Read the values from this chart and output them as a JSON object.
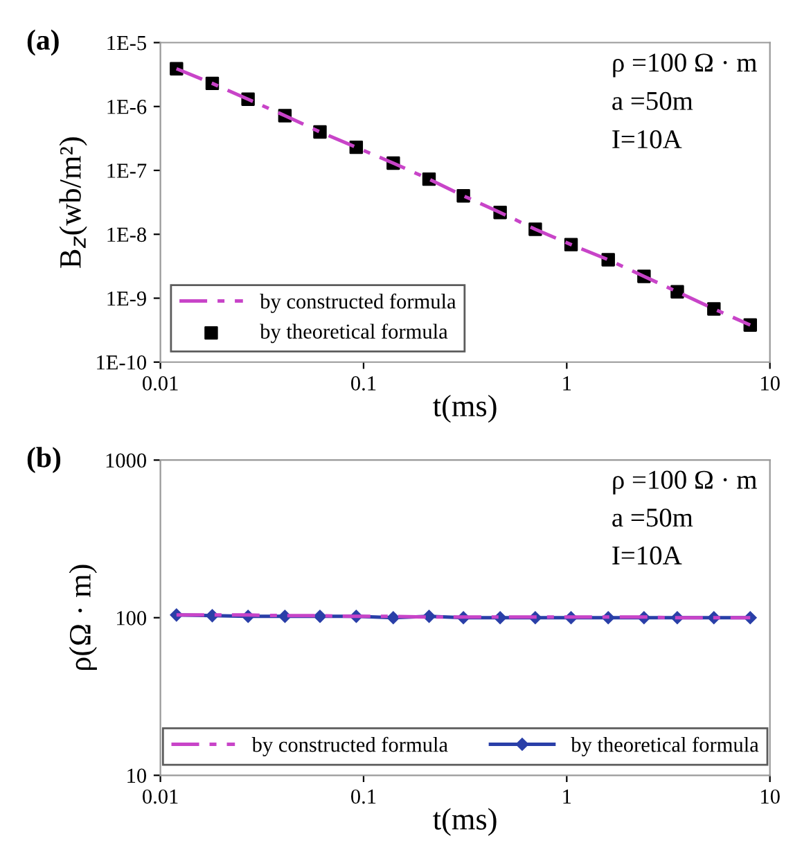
{
  "chart_data": [
    {
      "type": "line",
      "title": "(a)",
      "xlabel": "t(ms)",
      "ylabel": "B$_{z}$(wb/m²)",
      "log": "xy",
      "grid": false,
      "legend": "bottom left",
      "xlim": [
        0.01,
        10
      ],
      "xticks": [
        0.01,
        0.1,
        1,
        10
      ],
      "ylim": [
        1e-10,
        1e-05
      ],
      "yticks": [
        {
          "value": 1e-10,
          "label": "1E-10"
        },
        {
          "value": 1e-09,
          "label": "1E-9"
        },
        {
          "value": 1e-08,
          "label": "1E-8"
        },
        {
          "value": 1e-07,
          "label": "1E-7"
        },
        {
          "value": 1e-06,
          "label": "1E-6"
        },
        {
          "value": 1e-05,
          "label": "1E-5"
        }
      ],
      "x": [
        0.012,
        0.018,
        0.027,
        0.041,
        0.061,
        0.092,
        0.14,
        0.21,
        0.31,
        0.47,
        0.7,
        1.05,
        1.6,
        2.4,
        3.5,
        5.3,
        8
      ],
      "series": [
        {
          "name": "by constructed formula",
          "color": "#c844c8",
          "line_style": "dashed",
          "marker": "none",
          "values": [
            3.9e-06,
            2.3e-06,
            1.3e-06,
            7.2e-07,
            4e-07,
            2.3e-07,
            1.3e-07,
            7.3e-08,
            4e-08,
            2.2e-08,
            1.2e-08,
            6.9e-09,
            4e-09,
            2.2e-09,
            1.26e-09,
            6.8e-10,
            3.8e-10
          ]
        },
        {
          "name": "by theoretical formula",
          "type": "scatter",
          "color": "#000000",
          "marker": "square",
          "values": [
            3.9e-06,
            2.3e-06,
            1.3e-06,
            7.2e-07,
            4e-07,
            2.3e-07,
            1.3e-07,
            7.3e-08,
            4e-08,
            2.2e-08,
            1.2e-08,
            6.9e-09,
            4e-09,
            2.2e-09,
            1.26e-09,
            6.8e-10,
            3.8e-10
          ]
        }
      ],
      "annotations": [
        "ρ =100 Ω · m",
        "a =50m",
        "I=10A"
      ]
    },
    {
      "type": "line",
      "title": "(b)",
      "xlabel": "t(ms)",
      "ylabel": "ρ(Ω · m)",
      "log": "xy",
      "grid": false,
      "legend": "bottom",
      "xlim": [
        0.01,
        10
      ],
      "xticks": [
        0.01,
        0.1,
        1,
        10
      ],
      "ylim": [
        10,
        1000
      ],
      "yticks": [
        10,
        100,
        1000
      ],
      "x": [
        0.012,
        0.018,
        0.027,
        0.041,
        0.061,
        0.092,
        0.14,
        0.21,
        0.31,
        0.47,
        0.7,
        1.05,
        1.6,
        2.4,
        3.5,
        5.3,
        8
      ],
      "series": [
        {
          "name": "by constructed formula",
          "color": "#c844c8",
          "line_style": "dashed",
          "marker": "none",
          "values": [
            104,
            104,
            104,
            103,
            103,
            102,
            102,
            101,
            101,
            101,
            101,
            101,
            101,
            101,
            100,
            100,
            100
          ]
        },
        {
          "name": "by theoretical formula",
          "color": "#2a3fa8",
          "line_style": "solid",
          "marker": "diamond",
          "values": [
            104,
            103,
            102,
            102,
            102,
            102,
            100,
            102,
            100,
            100,
            100,
            100,
            100,
            100,
            100,
            100,
            100
          ]
        }
      ],
      "annotations": [
        "ρ =100 Ω · m",
        "a =50m",
        "I=10A"
      ]
    }
  ]
}
